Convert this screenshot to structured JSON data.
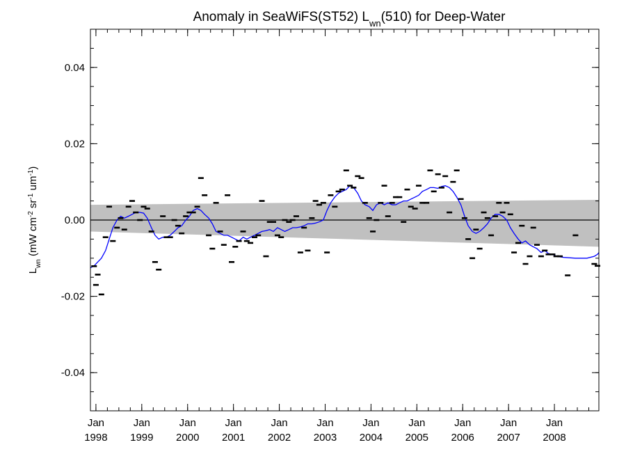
{
  "chart_data": {
    "type": "scatter",
    "title": "Anomaly in SeaWiFS(ST52) L",
    "title_sub": "wn",
    "title_tail": "(510) for Deep-Water",
    "ylabel": {
      "main": "L",
      "sub": "wn",
      "unit_open": " (mW cm",
      "exp1": "-2",
      "unit_sr": " sr",
      "exp2": "-1",
      "unit_um": " um",
      "exp3": "-1",
      "unit_close": ")"
    },
    "ylim": [
      -0.05,
      0.05
    ],
    "xlim": [
      1997.88,
      2008.97
    ],
    "y_ticks": [
      {
        "value": 0.04,
        "label": "0.04"
      },
      {
        "value": 0.02,
        "label": "0.02"
      },
      {
        "value": 0.0,
        "label": "0.00"
      },
      {
        "value": -0.02,
        "label": "-0.02"
      },
      {
        "value": -0.04,
        "label": "-0.04"
      }
    ],
    "x_ticks": [
      {
        "value": 1998.0,
        "month": "Jan",
        "year": "1998"
      },
      {
        "value": 1999.0,
        "month": "Jan",
        "year": "1999"
      },
      {
        "value": 2000.0,
        "month": "Jan",
        "year": "2000"
      },
      {
        "value": 2001.0,
        "month": "Jan",
        "year": "2001"
      },
      {
        "value": 2002.0,
        "month": "Jan",
        "year": "2002"
      },
      {
        "value": 2003.0,
        "month": "Jan",
        "year": "2003"
      },
      {
        "value": 2004.0,
        "month": "Jan",
        "year": "2004"
      },
      {
        "value": 2005.0,
        "month": "Jan",
        "year": "2005"
      },
      {
        "value": 2006.0,
        "month": "Jan",
        "year": "2006"
      },
      {
        "value": 2007.0,
        "month": "Jan",
        "year": "2007"
      },
      {
        "value": 2008.0,
        "month": "Jan",
        "year": "2008"
      }
    ],
    "zero_line": 0.0,
    "confidence_band": {
      "color": "#c0c0c0",
      "start": {
        "x": 1997.88,
        "upper": 0.004,
        "lower": -0.003
      },
      "end": {
        "x": 2008.97,
        "upper": 0.0053,
        "lower": -0.007
      }
    },
    "monthly_anomaly": {
      "color": "#000000",
      "points": [
        [
          1997.96,
          -0.0121
        ],
        [
          1998.0,
          -0.017
        ],
        [
          1998.04,
          -0.0143
        ],
        [
          1998.12,
          -0.0195
        ],
        [
          1998.21,
          -0.0045
        ],
        [
          1998.29,
          0.0035
        ],
        [
          1998.37,
          -0.0055
        ],
        [
          1998.46,
          -0.002
        ],
        [
          1998.54,
          0.0005
        ],
        [
          1998.62,
          -0.0025
        ],
        [
          1998.71,
          0.0035
        ],
        [
          1998.79,
          0.005
        ],
        [
          1998.87,
          0.002
        ],
        [
          1998.96,
          0.0
        ],
        [
          1999.04,
          0.0035
        ],
        [
          1999.12,
          0.003
        ],
        [
          1999.21,
          -0.003
        ],
        [
          1999.29,
          -0.011
        ],
        [
          1999.37,
          -0.013
        ],
        [
          1999.46,
          0.001
        ],
        [
          1999.54,
          -0.0045
        ],
        [
          1999.62,
          -0.0045
        ],
        [
          1999.71,
          -0.0
        ],
        [
          1999.79,
          -0.0015
        ],
        [
          1999.87,
          -0.0035
        ],
        [
          1999.96,
          0.001
        ],
        [
          2000.04,
          0.002
        ],
        [
          2000.12,
          0.002
        ],
        [
          2000.21,
          0.0035
        ],
        [
          2000.29,
          0.011
        ],
        [
          2000.37,
          0.0065
        ],
        [
          2000.46,
          -0.004
        ],
        [
          2000.54,
          -0.0075
        ],
        [
          2000.62,
          0.0045
        ],
        [
          2000.71,
          -0.003
        ],
        [
          2000.79,
          -0.0065
        ],
        [
          2000.87,
          0.0065
        ],
        [
          2000.96,
          -0.011
        ],
        [
          2001.04,
          -0.007
        ],
        [
          2001.12,
          -0.0055
        ],
        [
          2001.21,
          -0.003
        ],
        [
          2001.29,
          -0.0055
        ],
        [
          2001.37,
          -0.006
        ],
        [
          2001.46,
          -0.0045
        ],
        [
          2001.54,
          -0.004
        ],
        [
          2001.62,
          0.005
        ],
        [
          2001.71,
          -0.0095
        ],
        [
          2001.79,
          -0.0005
        ],
        [
          2001.87,
          -0.0005
        ],
        [
          2001.96,
          -0.004
        ],
        [
          2002.04,
          -0.0045
        ],
        [
          2002.12,
          0.0
        ],
        [
          2002.21,
          -0.0005
        ],
        [
          2002.29,
          0.0
        ],
        [
          2002.37,
          0.001
        ],
        [
          2002.46,
          -0.0085
        ],
        [
          2002.54,
          -0.002
        ],
        [
          2002.62,
          -0.008
        ],
        [
          2002.71,
          0.0005
        ],
        [
          2002.79,
          0.005
        ],
        [
          2002.87,
          0.004
        ],
        [
          2002.96,
          0.0045
        ],
        [
          2003.04,
          -0.0085
        ],
        [
          2003.12,
          0.0065
        ],
        [
          2003.21,
          0.0035
        ],
        [
          2003.29,
          0.0075
        ],
        [
          2003.37,
          0.008
        ],
        [
          2003.46,
          0.013
        ],
        [
          2003.54,
          0.009
        ],
        [
          2003.62,
          0.0085
        ],
        [
          2003.71,
          0.0115
        ],
        [
          2003.79,
          0.011
        ],
        [
          2003.87,
          0.0045
        ],
        [
          2003.96,
          0.0005
        ],
        [
          2004.04,
          -0.003
        ],
        [
          2004.12,
          0.0
        ],
        [
          2004.21,
          0.0045
        ],
        [
          2004.29,
          0.009
        ],
        [
          2004.37,
          0.001
        ],
        [
          2004.46,
          0.0045
        ],
        [
          2004.54,
          0.006
        ],
        [
          2004.62,
          0.006
        ],
        [
          2004.71,
          -0.0005
        ],
        [
          2004.79,
          0.008
        ],
        [
          2004.87,
          0.0035
        ],
        [
          2004.96,
          0.003
        ],
        [
          2005.04,
          0.009
        ],
        [
          2005.12,
          0.0045
        ],
        [
          2005.21,
          0.0045
        ],
        [
          2005.29,
          0.013
        ],
        [
          2005.37,
          0.0075
        ],
        [
          2005.46,
          0.012
        ],
        [
          2005.54,
          0.0085
        ],
        [
          2005.62,
          0.0115
        ],
        [
          2005.71,
          0.002
        ],
        [
          2005.79,
          0.01
        ],
        [
          2005.87,
          0.013
        ],
        [
          2005.96,
          0.0055
        ],
        [
          2006.04,
          0.0005
        ],
        [
          2006.12,
          -0.005
        ],
        [
          2006.21,
          -0.01
        ],
        [
          2006.29,
          -0.0025
        ],
        [
          2006.37,
          -0.0075
        ],
        [
          2006.46,
          0.002
        ],
        [
          2006.54,
          0.0005
        ],
        [
          2006.62,
          -0.004
        ],
        [
          2006.71,
          0.001
        ],
        [
          2006.79,
          0.0045
        ],
        [
          2006.87,
          0.002
        ],
        [
          2006.96,
          0.0045
        ],
        [
          2007.04,
          0.0015
        ],
        [
          2007.12,
          -0.0085
        ],
        [
          2007.21,
          -0.006
        ],
        [
          2007.29,
          -0.0015
        ],
        [
          2007.37,
          -0.0115
        ],
        [
          2007.46,
          -0.0095
        ],
        [
          2007.54,
          -0.002
        ],
        [
          2007.62,
          -0.0065
        ],
        [
          2007.71,
          -0.0095
        ],
        [
          2007.79,
          -0.008
        ],
        [
          2007.87,
          -0.009
        ],
        [
          2007.96,
          -0.009
        ],
        [
          2008.04,
          -0.0095
        ],
        [
          2008.12,
          -0.0095
        ],
        [
          2008.29,
          -0.0145
        ],
        [
          2008.46,
          -0.004
        ],
        [
          2008.87,
          -0.0115
        ],
        [
          2008.94,
          -0.012
        ]
      ]
    },
    "smoothed_series": {
      "color": "#0000ff",
      "points": [
        [
          1997.88,
          -0.0125
        ],
        [
          1997.96,
          -0.012
        ],
        [
          1998.04,
          -0.011
        ],
        [
          1998.12,
          -0.01
        ],
        [
          1998.21,
          -0.008
        ],
        [
          1998.29,
          -0.005
        ],
        [
          1998.37,
          -0.002
        ],
        [
          1998.46,
          0.0
        ],
        [
          1998.54,
          0.001
        ],
        [
          1998.62,
          0.0005
        ],
        [
          1998.71,
          0.001
        ],
        [
          1998.79,
          0.0015
        ],
        [
          1998.87,
          0.002
        ],
        [
          1998.96,
          0.002
        ],
        [
          1999.04,
          0.0018
        ],
        [
          1999.12,
          0.0005
        ],
        [
          1999.21,
          -0.002
        ],
        [
          1999.29,
          -0.004
        ],
        [
          1999.37,
          -0.005
        ],
        [
          1999.46,
          -0.0045
        ],
        [
          1999.54,
          -0.0045
        ],
        [
          1999.62,
          -0.004
        ],
        [
          1999.71,
          -0.003
        ],
        [
          1999.79,
          -0.002
        ],
        [
          1999.87,
          -0.0015
        ],
        [
          1999.96,
          0.0
        ],
        [
          2000.04,
          0.001
        ],
        [
          2000.12,
          0.0025
        ],
        [
          2000.21,
          0.003
        ],
        [
          2000.29,
          0.0025
        ],
        [
          2000.37,
          0.0015
        ],
        [
          2000.46,
          0.0005
        ],
        [
          2000.54,
          -0.001
        ],
        [
          2000.62,
          -0.003
        ],
        [
          2000.71,
          -0.0035
        ],
        [
          2000.79,
          -0.004
        ],
        [
          2000.87,
          -0.004
        ],
        [
          2000.96,
          -0.0045
        ],
        [
          2001.04,
          -0.005
        ],
        [
          2001.12,
          -0.0055
        ],
        [
          2001.21,
          -0.0045
        ],
        [
          2001.29,
          -0.005
        ],
        [
          2001.37,
          -0.0045
        ],
        [
          2001.46,
          -0.004
        ],
        [
          2001.54,
          -0.0035
        ],
        [
          2001.62,
          -0.003
        ],
        [
          2001.71,
          -0.0028
        ],
        [
          2001.79,
          -0.0025
        ],
        [
          2001.87,
          -0.003
        ],
        [
          2001.96,
          -0.002
        ],
        [
          2002.04,
          -0.0025
        ],
        [
          2002.12,
          -0.003
        ],
        [
          2002.21,
          -0.0025
        ],
        [
          2002.29,
          -0.002
        ],
        [
          2002.37,
          -0.002
        ],
        [
          2002.46,
          -0.0018
        ],
        [
          2002.54,
          -0.0015
        ],
        [
          2002.62,
          -0.001
        ],
        [
          2002.71,
          -0.001
        ],
        [
          2002.79,
          -0.0008
        ],
        [
          2002.87,
          -0.0005
        ],
        [
          2002.96,
          0.0
        ],
        [
          2003.04,
          0.0025
        ],
        [
          2003.12,
          0.0045
        ],
        [
          2003.21,
          0.006
        ],
        [
          2003.29,
          0.007
        ],
        [
          2003.37,
          0.0075
        ],
        [
          2003.46,
          0.008
        ],
        [
          2003.54,
          0.009
        ],
        [
          2003.62,
          0.0085
        ],
        [
          2003.71,
          0.007
        ],
        [
          2003.79,
          0.005
        ],
        [
          2003.87,
          0.004
        ],
        [
          2003.96,
          0.0035
        ],
        [
          2004.04,
          0.0025
        ],
        [
          2004.12,
          0.004
        ],
        [
          2004.21,
          0.0045
        ],
        [
          2004.29,
          0.004
        ],
        [
          2004.37,
          0.0045
        ],
        [
          2004.46,
          0.004
        ],
        [
          2004.54,
          0.004
        ],
        [
          2004.62,
          0.0045
        ],
        [
          2004.71,
          0.005
        ],
        [
          2004.79,
          0.005
        ],
        [
          2004.87,
          0.0055
        ],
        [
          2004.96,
          0.006
        ],
        [
          2005.04,
          0.0065
        ],
        [
          2005.12,
          0.0075
        ],
        [
          2005.21,
          0.008
        ],
        [
          2005.29,
          0.0085
        ],
        [
          2005.37,
          0.0085
        ],
        [
          2005.46,
          0.0083
        ],
        [
          2005.54,
          0.0088
        ],
        [
          2005.62,
          0.009
        ],
        [
          2005.71,
          0.0085
        ],
        [
          2005.79,
          0.0075
        ],
        [
          2005.87,
          0.006
        ],
        [
          2005.96,
          0.004
        ],
        [
          2006.04,
          0.001
        ],
        [
          2006.12,
          -0.0015
        ],
        [
          2006.21,
          -0.003
        ],
        [
          2006.29,
          -0.0035
        ],
        [
          2006.37,
          -0.003
        ],
        [
          2006.46,
          -0.002
        ],
        [
          2006.54,
          -0.001
        ],
        [
          2006.62,
          0.0005
        ],
        [
          2006.71,
          0.0015
        ],
        [
          2006.79,
          0.0015
        ],
        [
          2006.87,
          0.001
        ],
        [
          2006.96,
          0.0
        ],
        [
          2007.04,
          -0.002
        ],
        [
          2007.12,
          -0.0035
        ],
        [
          2007.21,
          -0.005
        ],
        [
          2007.29,
          -0.006
        ],
        [
          2007.37,
          -0.0055
        ],
        [
          2007.46,
          -0.0065
        ],
        [
          2007.54,
          -0.007
        ],
        [
          2007.62,
          -0.0075
        ],
        [
          2007.71,
          -0.0085
        ],
        [
          2007.79,
          -0.008
        ],
        [
          2007.87,
          -0.0088
        ],
        [
          2007.96,
          -0.009
        ],
        [
          2008.04,
          -0.0095
        ],
        [
          2008.21,
          -0.0098
        ],
        [
          2008.46,
          -0.01
        ],
        [
          2008.71,
          -0.01
        ],
        [
          2008.87,
          -0.0095
        ],
        [
          2008.94,
          -0.009
        ],
        [
          2008.97,
          -0.0085
        ]
      ]
    }
  }
}
